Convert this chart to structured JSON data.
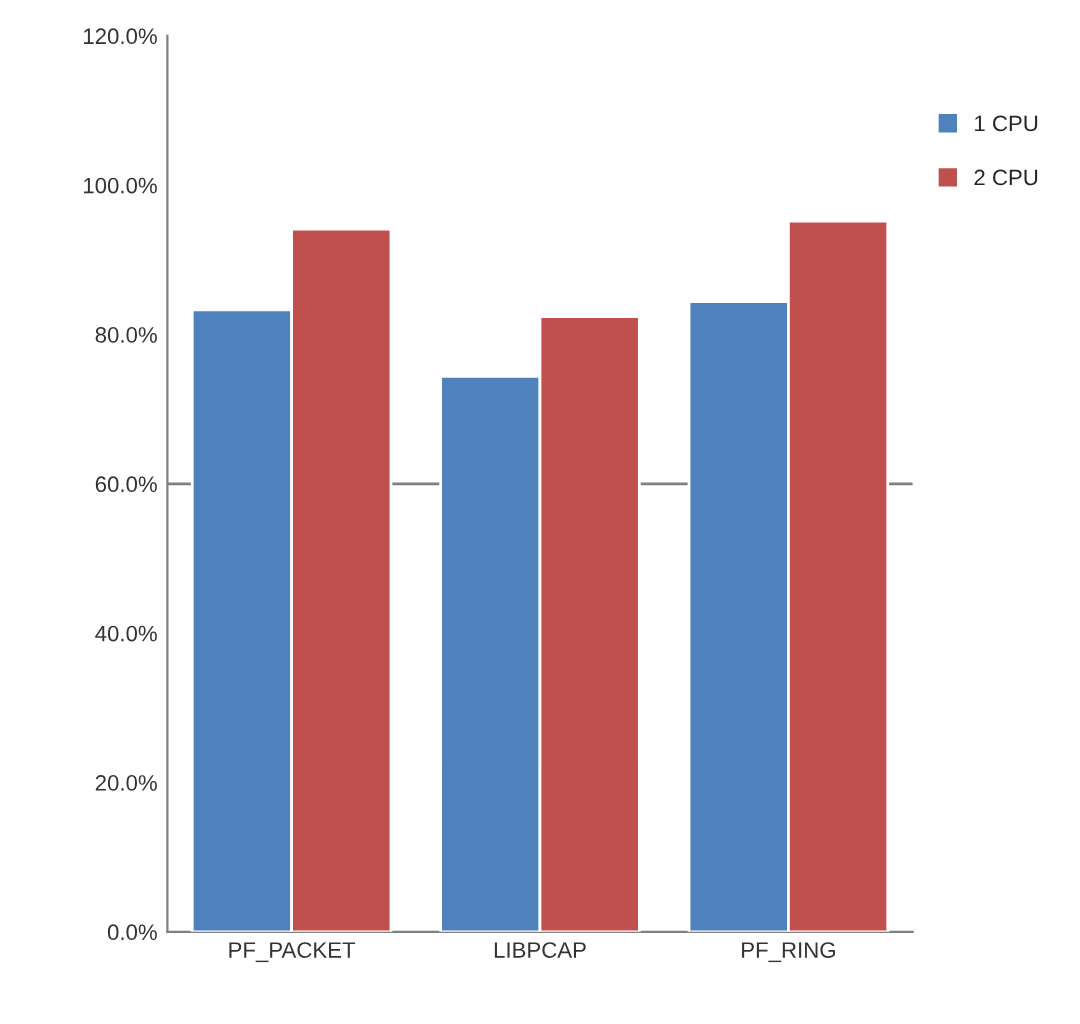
{
  "chart_data": {
    "type": "bar",
    "categories": [
      "PF_PACKET",
      "LIBPCAP",
      "PF_RING"
    ],
    "series": [
      {
        "name": "1 CPU",
        "color": "#4f81bd",
        "values": [
          83.3,
          74.4,
          84.4
        ]
      },
      {
        "name": "2 CPU",
        "color": "#c0504d",
        "values": [
          94.1,
          82.4,
          95.2
        ]
      }
    ],
    "ylim": [
      0,
      120
    ],
    "yticks": [
      {
        "value": 0,
        "label": "0.0%"
      },
      {
        "value": 20,
        "label": "20.0%"
      },
      {
        "value": 40,
        "label": "40.0%"
      },
      {
        "value": 60,
        "label": "60.0%"
      },
      {
        "value": 80,
        "label": "80.0%"
      },
      {
        "value": 100,
        "label": "100.0%"
      },
      {
        "value": 120,
        "label": "120.0%"
      }
    ],
    "ref_lines": [
      {
        "axis": "y",
        "value": 60,
        "color": "#808080"
      }
    ],
    "grid": false,
    "legend": "right"
  }
}
